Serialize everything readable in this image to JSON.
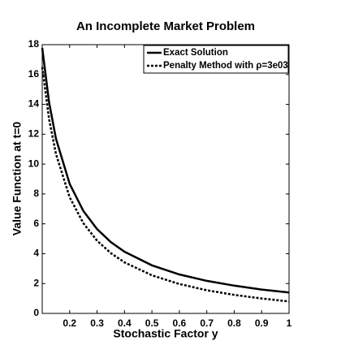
{
  "chart_data": {
    "type": "line",
    "title": "An Incomplete Market Problem",
    "x_label": "Stochastic Factor y",
    "y_label": "Value Function at t=0",
    "x": [
      0.1,
      0.125,
      0.15,
      0.2,
      0.25,
      0.3,
      0.35,
      0.4,
      0.5,
      0.6,
      0.7,
      0.8,
      0.9,
      1
    ],
    "series": [
      {
        "name": "Exact Solution",
        "color": "#000000",
        "dash": "solid",
        "values": [
          17.78,
          14.14,
          11.71,
          8.68,
          6.86,
          5.65,
          4.78,
          4.13,
          3.22,
          2.61,
          2.18,
          1.86,
          1.6,
          1.4
        ]
      },
      {
        "name": "Penalty Method with ρ=3e03",
        "color": "#000000",
        "dash": "dotted",
        "values": [
          16.5,
          13.01,
          10.69,
          7.78,
          6.04,
          4.87,
          4.04,
          3.42,
          2.55,
          1.97,
          1.55,
          1.24,
          1.0,
          0.8
        ]
      }
    ],
    "xlim": [
      0.1,
      1
    ],
    "xticks": [
      0.2,
      0.3,
      0.4,
      0.5,
      0.6,
      0.7,
      0.8,
      0.9,
      1
    ],
    "ylim": [
      0,
      18
    ],
    "yticks": [
      0,
      2,
      4,
      6,
      8,
      10,
      12,
      14,
      16,
      18
    ],
    "legend": "upper right"
  }
}
